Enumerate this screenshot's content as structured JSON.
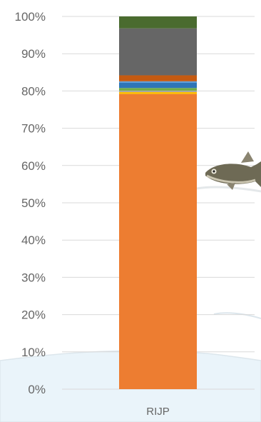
{
  "chart_data": {
    "type": "bar",
    "stacked": true,
    "categories": [
      "RIJP"
    ],
    "ylim": [
      0,
      100
    ],
    "yticks": [
      0,
      10,
      20,
      30,
      40,
      50,
      60,
      70,
      80,
      90,
      100
    ],
    "ytick_labels": [
      "0%",
      "10%",
      "20%",
      "30%",
      "40%",
      "50%",
      "60%",
      "70%",
      "80%",
      "90%",
      "100%"
    ],
    "grid": true,
    "legend": "none",
    "series": [
      {
        "values": [
          79.2
        ],
        "color": "#ED7D31"
      },
      {
        "values": [
          0.5
        ],
        "color": "#FFC000"
      },
      {
        "values": [
          0.4
        ],
        "color": "#A5A5A5"
      },
      {
        "values": [
          0.7
        ],
        "color": "#70AD47"
      },
      {
        "values": [
          1.4
        ],
        "color": "#2E75B6"
      },
      {
        "values": [
          0.4
        ],
        "color": "#5B9BD5"
      },
      {
        "values": [
          1.6
        ],
        "color": "#C55A11"
      },
      {
        "values": [
          12.6
        ],
        "color": "#666666"
      },
      {
        "values": [
          3.2
        ],
        "color": "#4A6B2F"
      }
    ]
  },
  "decor": {
    "fish_icon": "fish-icon",
    "ice_icon": "ice-floe-icon",
    "ice_color": "#EAF4FA"
  }
}
